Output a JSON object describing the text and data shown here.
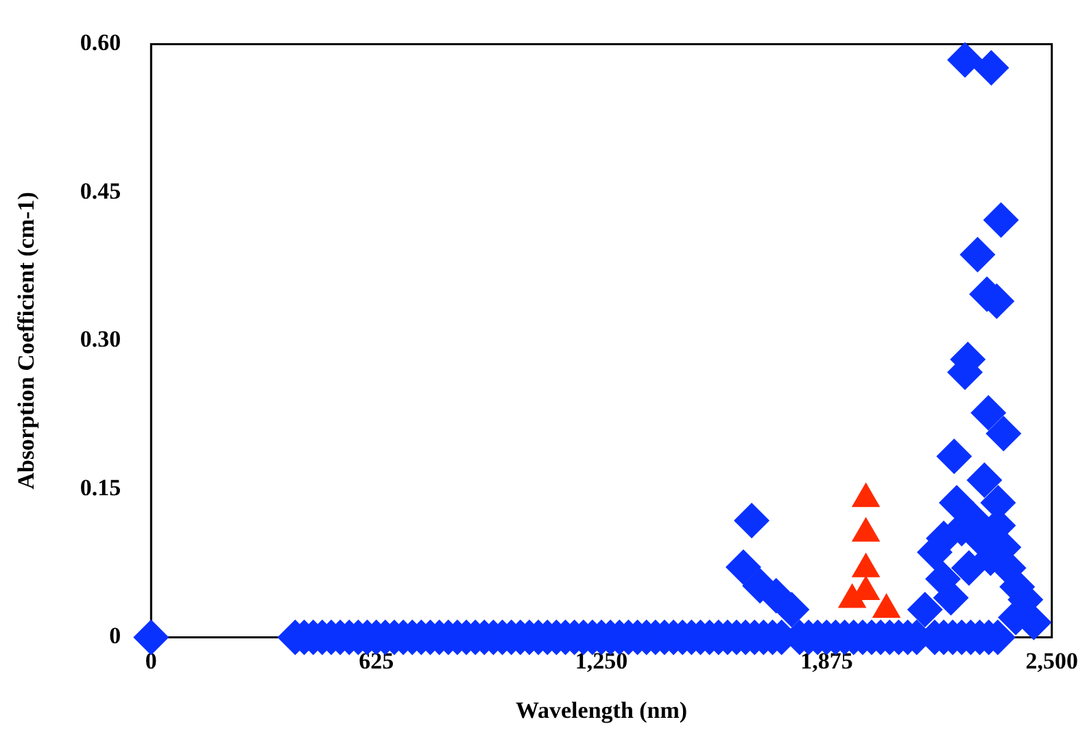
{
  "chart_data": {
    "type": "scatter",
    "xlabel": "Wavelength (nm)",
    "ylabel": "Absorption Coefficient (cm-1)",
    "xlim": [
      0,
      2500
    ],
    "xticks": [
      0,
      625,
      {
        "value": 1250,
        "label": "1,250"
      },
      {
        "value": 1875,
        "label": "1,875"
      },
      {
        "value": 2500,
        "label": "2,500"
      }
    ],
    "ylim": [
      0,
      0.6
    ],
    "yticks": [
      0,
      {
        "value": 0.15,
        "label": "0.15"
      },
      {
        "value": 0.3,
        "label": "0.30"
      },
      {
        "value": 0.45,
        "label": "0.45"
      },
      {
        "value": 0.6,
        "label": "0.60"
      }
    ],
    "grid": false,
    "legend": false,
    "series": [
      {
        "color": "#0a32ff",
        "marker": "diamond",
        "x": [
          0,
          400,
          425,
          450,
          475,
          500,
          525,
          550,
          575,
          600,
          625,
          650,
          675,
          700,
          725,
          750,
          775,
          800,
          825,
          850,
          875,
          900,
          925,
          950,
          975,
          1000,
          1025,
          1050,
          1075,
          1100,
          1125,
          1150,
          1175,
          1200,
          1225,
          1250,
          1275,
          1300,
          1325,
          1350,
          1375,
          1400,
          1425,
          1450,
          1475,
          1500,
          1525,
          1550,
          1575,
          1600,
          1625,
          1650,
          1675,
          1700,
          1725,
          1750,
          1800,
          1825,
          1850,
          1875,
          1900,
          1925,
          1950,
          1975,
          2000,
          2025,
          2050,
          2075,
          2100,
          2125,
          2175,
          2200,
          2225,
          2250,
          2275,
          2300,
          2325,
          2350,
          1667,
          1644,
          1690,
          1735,
          1778,
          2259,
          2332,
          2359,
          2294,
          2320,
          2347,
          2267,
          2259,
          2324,
          2366,
          2229,
          2313,
          2236,
          2351,
          2175,
          2351,
          2366,
          2198,
          2404,
          2427,
          2148,
          2200,
          2250,
          2280,
          2300,
          2330,
          2380,
          2270,
          2220,
          2400,
          2450
        ],
        "values": [
          0,
          0,
          0,
          0,
          0,
          0,
          0,
          0,
          0,
          0,
          0,
          0,
          0,
          0,
          0,
          0,
          0,
          0,
          0,
          0,
          0,
          0,
          0,
          0,
          0,
          0,
          0,
          0,
          0,
          0,
          0,
          0,
          0,
          0,
          0,
          0,
          0,
          0,
          0,
          0,
          0,
          0,
          0,
          0,
          0,
          0,
          0,
          0,
          0,
          0,
          0,
          0,
          0,
          0,
          0,
          0,
          0,
          0,
          0,
          0,
          0,
          0,
          0,
          0,
          0,
          0,
          0,
          0,
          0,
          0,
          0,
          0,
          0,
          0,
          0,
          0,
          0,
          0,
          0.118,
          0.071,
          0.052,
          0.042,
          0.028,
          0.584,
          0.576,
          0.422,
          0.387,
          0.347,
          0.34,
          0.281,
          0.268,
          0.227,
          0.206,
          0.183,
          0.159,
          0.136,
          0.136,
          0.086,
          0.113,
          0.091,
          0.059,
          0.051,
          0.038,
          0.028,
          0.1,
          0.11,
          0.12,
          0.1,
          0.08,
          0.07,
          0.07,
          0.04,
          0.02,
          0.015
        ]
      },
      {
        "color": "#ff2a00",
        "marker": "triangle",
        "x": [
          1984,
          1984,
          1984,
          1946,
          1984,
          2041
        ],
        "values": [
          0.14,
          0.105,
          0.069,
          0.038,
          0.046,
          0.028
        ]
      }
    ]
  }
}
